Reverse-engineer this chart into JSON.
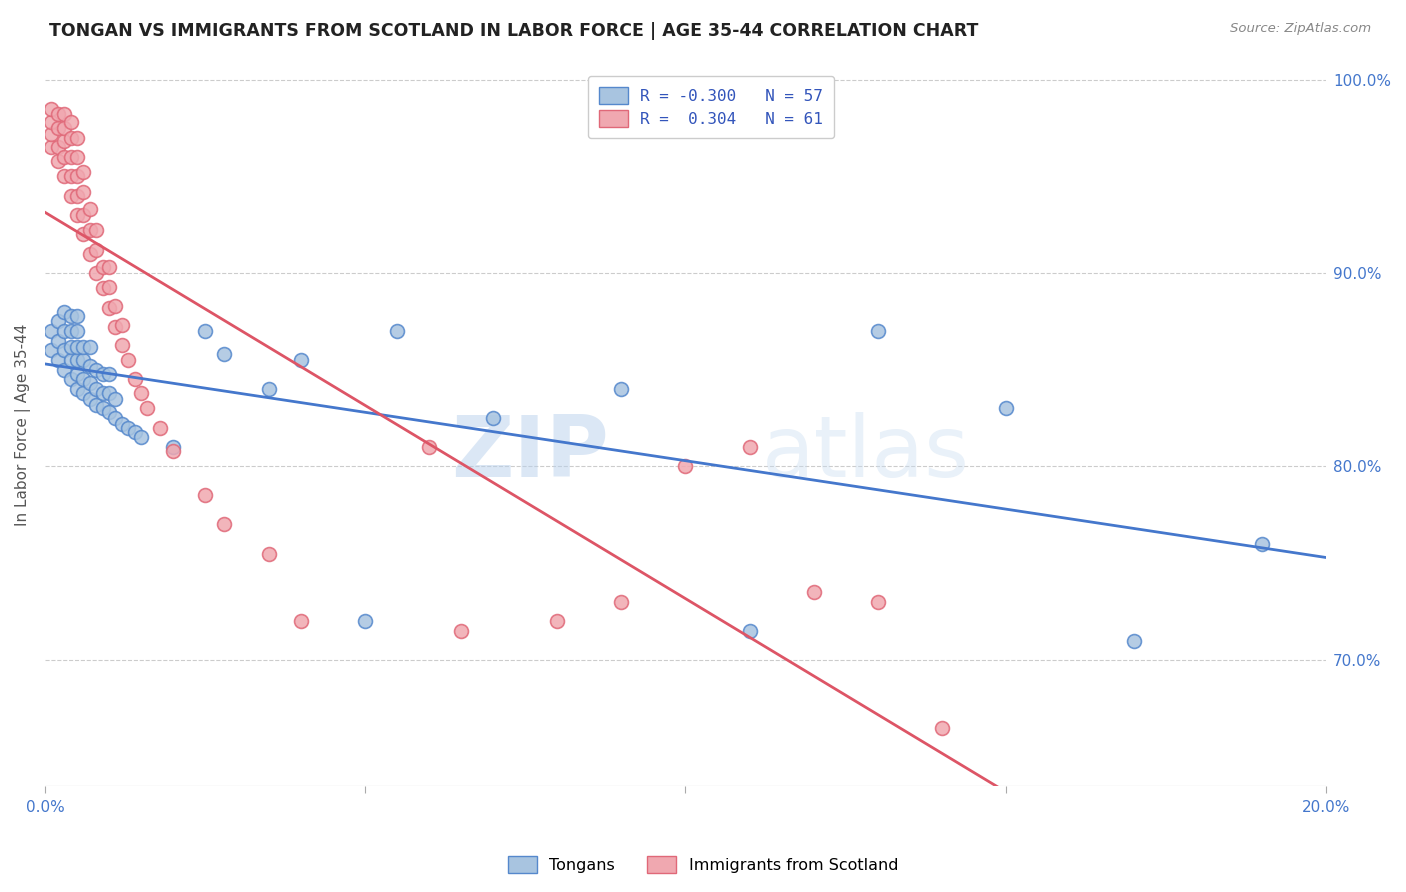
{
  "title": "TONGAN VS IMMIGRANTS FROM SCOTLAND IN LABOR FORCE | AGE 35-44 CORRELATION CHART",
  "source": "Source: ZipAtlas.com",
  "ylabel": "In Labor Force | Age 35-44",
  "xmin": 0.0,
  "xmax": 0.2,
  "ymin": 0.635,
  "ymax": 1.008,
  "yticks": [
    0.7,
    0.8,
    0.9,
    1.0
  ],
  "ytick_labels": [
    "70.0%",
    "80.0%",
    "90.0%",
    "100.0%"
  ],
  "xticks": [
    0.0,
    0.05,
    0.1,
    0.15,
    0.2
  ],
  "xtick_labels": [
    "0.0%",
    "",
    "",
    "",
    "20.0%"
  ],
  "blue_r": -0.3,
  "blue_n": 57,
  "pink_r": 0.304,
  "pink_n": 61,
  "blue_label": "Tongans",
  "pink_label": "Immigrants from Scotland",
  "blue_color": "#A8C4E0",
  "pink_color": "#F0A8B0",
  "blue_edge_color": "#5588CC",
  "pink_edge_color": "#E06878",
  "blue_line_color": "#4477CC",
  "pink_line_color": "#DD5566",
  "grid_color": "#CCCCCC",
  "watermark_zip": "ZIP",
  "watermark_atlas": "atlas",
  "blue_x": [
    0.001,
    0.001,
    0.002,
    0.002,
    0.002,
    0.003,
    0.003,
    0.003,
    0.003,
    0.004,
    0.004,
    0.004,
    0.004,
    0.004,
    0.005,
    0.005,
    0.005,
    0.005,
    0.005,
    0.005,
    0.006,
    0.006,
    0.006,
    0.006,
    0.007,
    0.007,
    0.007,
    0.007,
    0.008,
    0.008,
    0.008,
    0.009,
    0.009,
    0.009,
    0.01,
    0.01,
    0.01,
    0.011,
    0.011,
    0.012,
    0.013,
    0.014,
    0.015,
    0.02,
    0.025,
    0.028,
    0.035,
    0.04,
    0.05,
    0.055,
    0.07,
    0.09,
    0.11,
    0.13,
    0.15,
    0.17,
    0.19
  ],
  "blue_y": [
    0.86,
    0.87,
    0.855,
    0.865,
    0.875,
    0.85,
    0.86,
    0.87,
    0.88,
    0.845,
    0.855,
    0.862,
    0.87,
    0.878,
    0.84,
    0.848,
    0.855,
    0.862,
    0.87,
    0.878,
    0.838,
    0.845,
    0.855,
    0.862,
    0.835,
    0.843,
    0.852,
    0.862,
    0.832,
    0.84,
    0.85,
    0.83,
    0.838,
    0.848,
    0.828,
    0.838,
    0.848,
    0.825,
    0.835,
    0.822,
    0.82,
    0.818,
    0.815,
    0.81,
    0.87,
    0.858,
    0.84,
    0.855,
    0.72,
    0.87,
    0.825,
    0.84,
    0.715,
    0.87,
    0.83,
    0.71,
    0.76
  ],
  "pink_x": [
    0.001,
    0.001,
    0.001,
    0.001,
    0.002,
    0.002,
    0.002,
    0.002,
    0.003,
    0.003,
    0.003,
    0.003,
    0.003,
    0.004,
    0.004,
    0.004,
    0.004,
    0.004,
    0.005,
    0.005,
    0.005,
    0.005,
    0.005,
    0.006,
    0.006,
    0.006,
    0.006,
    0.007,
    0.007,
    0.007,
    0.008,
    0.008,
    0.008,
    0.009,
    0.009,
    0.01,
    0.01,
    0.01,
    0.011,
    0.011,
    0.012,
    0.012,
    0.013,
    0.014,
    0.015,
    0.016,
    0.018,
    0.02,
    0.025,
    0.028,
    0.035,
    0.04,
    0.06,
    0.065,
    0.08,
    0.09,
    0.1,
    0.11,
    0.12,
    0.13,
    0.14
  ],
  "pink_y": [
    0.965,
    0.972,
    0.978,
    0.985,
    0.958,
    0.965,
    0.975,
    0.982,
    0.95,
    0.96,
    0.968,
    0.975,
    0.982,
    0.94,
    0.95,
    0.96,
    0.97,
    0.978,
    0.93,
    0.94,
    0.95,
    0.96,
    0.97,
    0.92,
    0.93,
    0.942,
    0.952,
    0.91,
    0.922,
    0.933,
    0.9,
    0.912,
    0.922,
    0.892,
    0.903,
    0.882,
    0.893,
    0.903,
    0.872,
    0.883,
    0.863,
    0.873,
    0.855,
    0.845,
    0.838,
    0.83,
    0.82,
    0.808,
    0.785,
    0.77,
    0.755,
    0.72,
    0.81,
    0.715,
    0.72,
    0.73,
    0.8,
    0.81,
    0.735,
    0.73,
    0.665
  ]
}
